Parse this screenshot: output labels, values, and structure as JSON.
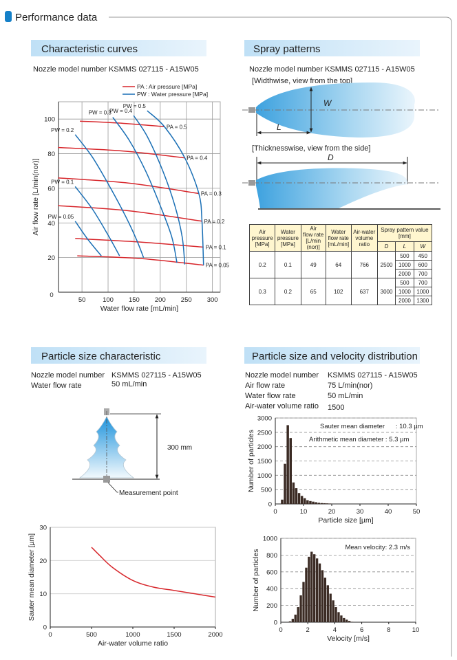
{
  "header": {
    "title": "Performance data"
  },
  "sections": {
    "curves": {
      "title": "Characteristic curves",
      "nozzle": "Nozzle model number  KSMMS 027115 - A15W05"
    },
    "spray": {
      "title": "Spray patterns",
      "nozzle": "Nozzle model number  KSMMS 027115 - A15W05",
      "top_view": "[Widthwise, view from the top]",
      "side_view": "[Thicknesswise, view from the side]",
      "w": "W",
      "l": "L",
      "d": "D"
    },
    "particle": {
      "title": "Particle size characteristic",
      "specs": [
        [
          "Nozzle model number",
          "KSMMS 027115 - A15W05"
        ],
        [
          "Water flow rate",
          "50 mL/min"
        ]
      ],
      "distance": "300 mm",
      "point": "Measurement point"
    },
    "distribution": {
      "title": "Particle size and velocity distribution",
      "specs": [
        [
          "Nozzle model number",
          "KSMMS 027115 - A15W05"
        ],
        [
          "Air flow rate",
          "75 L/min(nor)"
        ],
        [
          "Water flow rate",
          "50 mL/min"
        ],
        [
          "Air-water volume ratio",
          "1500"
        ]
      ]
    }
  },
  "table": {
    "headers": [
      [
        "Air",
        "pressure",
        "[MPa]"
      ],
      [
        "Water",
        "pressure",
        "[MPa]"
      ],
      [
        "Air",
        "flow rate",
        "[L/min",
        "(nor)]"
      ],
      [
        "Water",
        "flow rate",
        "[mL/min]"
      ],
      [
        "Air-water",
        "volume",
        "ratio"
      ]
    ],
    "spray_header": [
      "Spray pattern value",
      "[mm]"
    ],
    "sub_headers": [
      "D",
      "L",
      "W"
    ],
    "groups": [
      {
        "air_pressure": 0.2,
        "water_pressure": 0.1,
        "air_flow": 49,
        "water_flow": 64,
        "ratio": 766,
        "D": 2500,
        "rows": [
          [
            500,
            450
          ],
          [
            1000,
            600
          ],
          [
            2000,
            700
          ]
        ]
      },
      {
        "air_pressure": 0.3,
        "water_pressure": 0.2,
        "air_flow": 65,
        "water_flow": 102,
        "ratio": 637,
        "D": 3000,
        "rows": [
          [
            500,
            700
          ],
          [
            1000,
            1000
          ],
          [
            2000,
            1300
          ]
        ]
      }
    ]
  },
  "chart_data": [
    {
      "type": "line",
      "legend": [
        {
          "label": "PA : Air pressure [MPa]",
          "color": "#d7262b"
        },
        {
          "label": "PW : Water pressure [MPa]",
          "color": "#1a6fb5"
        }
      ],
      "xlabel": "Water flow rate [mL/min]",
      "ylabel": "Air flow rate [L/min(nor)]",
      "origin_label": "0",
      "xlim": [
        5,
        315
      ],
      "ylim": [
        0,
        110
      ],
      "xticks": [
        50,
        100,
        150,
        200,
        250,
        300
      ],
      "yticks": [
        20,
        40,
        60,
        80,
        100
      ],
      "grid": true,
      "series": [
        {
          "name": "PA = 0.5",
          "color": "#d7262b",
          "x": [
            46,
            130,
            208
          ],
          "values": [
            98.8,
            97.5,
            95.6
          ]
        },
        {
          "name": "PA = 0.4",
          "color": "#d7262b",
          "x": [
            4,
            130,
            247
          ],
          "values": [
            83.6,
            81.5,
            77.6
          ]
        },
        {
          "name": "PA = 0.3",
          "color": "#d7262b",
          "x": [
            4,
            140,
            274
          ],
          "values": [
            66,
            63,
            57
          ]
        },
        {
          "name": "PA = 0.2",
          "color": "#d7262b",
          "x": [
            4,
            140,
            280
          ],
          "values": [
            50,
            47,
            41
          ]
        },
        {
          "name": "PA = 0.1",
          "color": "#d7262b",
          "x": [
            37,
            160,
            283
          ],
          "values": [
            31,
            29,
            26
          ]
        },
        {
          "name": "PA = 0.05",
          "color": "#d7262b",
          "x": [
            41,
            160,
            283
          ],
          "values": [
            21,
            19.5,
            15.6
          ]
        },
        {
          "name": "PW = 0.5",
          "color": "#1a6fb5",
          "x": [
            175,
            208,
            247,
            274,
            280,
            283
          ],
          "values": [
            104.8,
            95.6,
            77.6,
            57,
            41,
            15.6
          ]
        },
        {
          "name": "PW = 0.4",
          "color": "#1a6fb5",
          "x": [
            149,
            175,
            205,
            228,
            242,
            247
          ],
          "values": [
            102,
            90,
            70,
            50,
            32,
            16
          ]
        },
        {
          "name": "PW = 0.3",
          "color": "#1a6fb5",
          "x": [
            109,
            140,
            172,
            200,
            222,
            232
          ],
          "values": [
            101,
            88,
            70,
            50,
            32,
            17
          ]
        },
        {
          "name": "PW = 0.2",
          "color": "#1a6fb5",
          "x": [
            37,
            70,
            105,
            135,
            155,
            168
          ],
          "values": [
            91,
            78,
            60,
            43,
            30,
            20
          ]
        },
        {
          "name": "PW = 0.1",
          "color": "#1a6fb5",
          "x": [
            37,
            70,
            100,
            122
          ],
          "values": [
            61,
            48,
            33,
            21
          ]
        },
        {
          "name": "PW = 0.05",
          "color": "#1a6fb5",
          "x": [
            37,
            60,
            87
          ],
          "values": [
            41,
            31,
            21
          ]
        }
      ]
    },
    {
      "type": "line",
      "xlabel": "Air-water volume ratio",
      "ylabel": "Sauter mean diameter  [µm]",
      "xlim": [
        0,
        2000
      ],
      "ylim": [
        0,
        30
      ],
      "xticks": [
        0,
        500,
        1000,
        1500,
        2000
      ],
      "yticks": [
        0,
        10,
        20,
        30
      ],
      "grid": "y",
      "series": [
        {
          "color": "#d7262b",
          "x": [
            500,
            600,
            750,
            1000,
            1250,
            1500,
            1750,
            2000
          ],
          "values": [
            24,
            21.5,
            18,
            14,
            12,
            11,
            10,
            9
          ]
        }
      ]
    },
    {
      "type": "histogram",
      "xlabel": "Particle size  [µm]",
      "ylabel": "Number of particles",
      "color": "#3b2b24",
      "bins": [
        2,
        3,
        4,
        5,
        6,
        7,
        8,
        9,
        10,
        11,
        12,
        13,
        14,
        15,
        16,
        17,
        18,
        19,
        20
      ],
      "values": [
        150,
        1400,
        2750,
        2300,
        750,
        550,
        380,
        280,
        200,
        130,
        100,
        80,
        60,
        40,
        30,
        25,
        20,
        15
      ],
      "xlim": [
        0,
        50
      ],
      "ylim": [
        0,
        3000
      ],
      "xticks": [
        0,
        10,
        20,
        30,
        40,
        50
      ],
      "yticks": [
        0,
        500,
        1000,
        1500,
        2000,
        2500,
        3000
      ],
      "grid": "dashed",
      "annotations": [
        "Sauter mean diameter      : 10.3 µm",
        "Arithmetic mean diameter : 5.3 µm"
      ]
    },
    {
      "type": "histogram",
      "xlabel": "Velocity [m/s]",
      "ylabel": "Number of particles",
      "color": "#3b2b24",
      "bins": [
        0.6,
        0.8,
        1.0,
        1.2,
        1.4,
        1.6,
        1.8,
        2.0,
        2.2,
        2.4,
        2.6,
        2.8,
        3.0,
        3.2,
        3.4,
        3.6,
        3.8,
        4.0,
        4.2,
        4.4,
        4.6,
        4.8,
        5.0,
        5.2,
        5.4
      ],
      "values": [
        10,
        40,
        90,
        180,
        320,
        480,
        650,
        780,
        840,
        810,
        760,
        700,
        620,
        530,
        440,
        340,
        260,
        180,
        120,
        80,
        50,
        30,
        15,
        5
      ],
      "xlim": [
        0,
        10
      ],
      "ylim": [
        0,
        1000
      ],
      "xticks": [
        0,
        2,
        4,
        6,
        8,
        10
      ],
      "yticks": [
        0,
        200,
        400,
        600,
        800,
        1000
      ],
      "grid": "dashed",
      "annotations": [
        "Mean velocity: 2.3 m/s"
      ]
    }
  ]
}
